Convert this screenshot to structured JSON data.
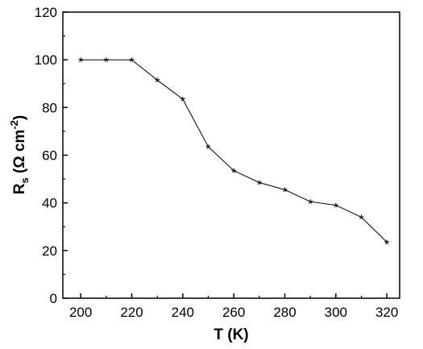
{
  "chart_data": {
    "type": "line",
    "xlabel": "T (K)",
    "ylabel": {
      "main": "R",
      "subscript": "s",
      "unit_open": " (Ω cm",
      "superscript": "-2",
      "unit_close": ")"
    },
    "xlim": [
      193,
      325
    ],
    "ylim": [
      0,
      120
    ],
    "x_ticks": [
      200,
      220,
      240,
      260,
      280,
      300,
      320
    ],
    "y_ticks": [
      0,
      20,
      40,
      60,
      80,
      100,
      120
    ],
    "grid": false,
    "legend": "none",
    "series": [
      {
        "marker": "star",
        "color": "#000000",
        "x": [
          200,
          210,
          220,
          230,
          240,
          250,
          260,
          270,
          280,
          290,
          300,
          310,
          320
        ],
        "y": [
          100,
          100,
          100,
          91.5,
          83.5,
          63.5,
          53.5,
          48.5,
          45.5,
          40.5,
          39,
          34,
          23.5
        ]
      }
    ]
  }
}
